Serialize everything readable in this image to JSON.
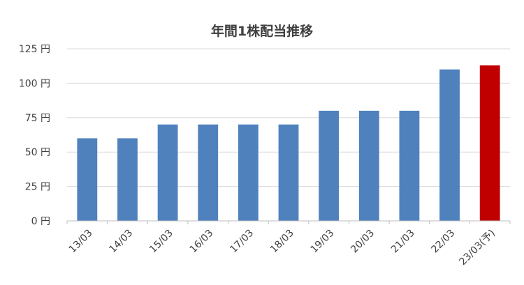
{
  "chart_data": {
    "type": "bar",
    "title": "年間1株配当推移",
    "categories": [
      "13/03",
      "14/03",
      "15/03",
      "16/03",
      "17/03",
      "18/03",
      "19/03",
      "20/03",
      "21/03",
      "22/03",
      "23/03(予)"
    ],
    "values": [
      60,
      60,
      70,
      70,
      70,
      70,
      80,
      80,
      80,
      110,
      113
    ],
    "colors": [
      "#4F81BD",
      "#4F81BD",
      "#4F81BD",
      "#4F81BD",
      "#4F81BD",
      "#4F81BD",
      "#4F81BD",
      "#4F81BD",
      "#4F81BD",
      "#4F81BD",
      "#C00000"
    ],
    "y_ticks": [
      "0 円",
      "25 円",
      "50 円",
      "75 円",
      "100 円",
      "125 円"
    ],
    "ylim": [
      0,
      125
    ],
    "grid": true,
    "xlabel": "",
    "ylabel": ""
  }
}
